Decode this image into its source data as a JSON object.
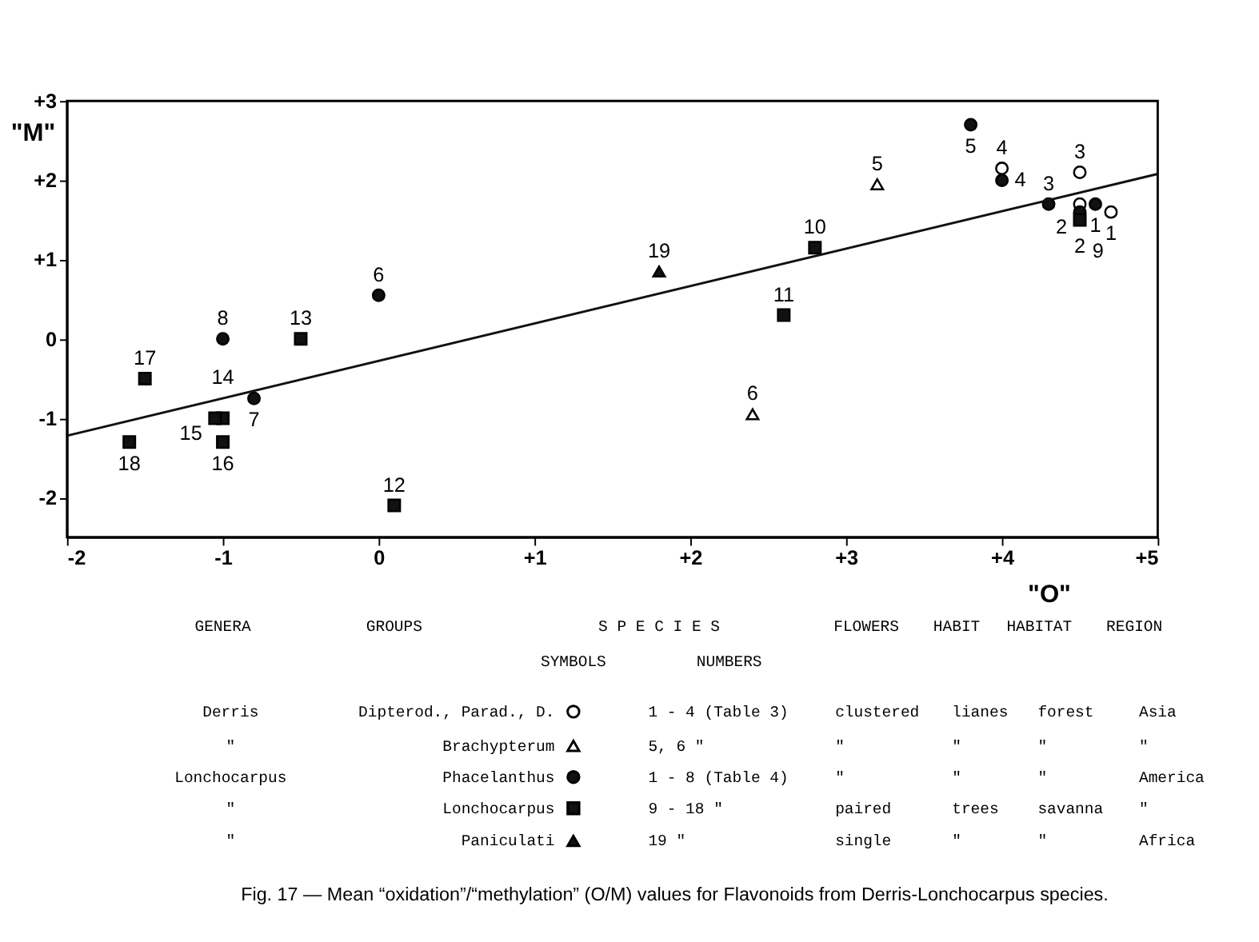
{
  "chart_data": {
    "type": "scatter",
    "xlabel": "\"O\"",
    "ylabel": "\"M\"",
    "xlim": [
      -2,
      5
    ],
    "ylim": [
      -2.5,
      3
    ],
    "xticks": [
      -2,
      -1,
      0,
      {
        "value": 1,
        "label": "+1"
      },
      {
        "value": 2,
        "label": "+2"
      },
      {
        "value": 3,
        "label": "+3"
      },
      {
        "value": 4,
        "label": "+4"
      },
      {
        "value": 5,
        "label": "+5"
      }
    ],
    "yticks": [
      -2,
      -1,
      0,
      {
        "value": 1,
        "label": "+1"
      },
      {
        "value": 2,
        "label": "+2"
      },
      {
        "value": 3,
        "label": "+3"
      }
    ],
    "grid": false,
    "legend": "bottom",
    "series": [
      {
        "name": "Dipterod., Parad., D.",
        "color": "#ffffff",
        "marker": "circle",
        "x": [
          4.7,
          4.5,
          4.5,
          4.0
        ],
        "values": [
          1.6,
          1.7,
          2.1,
          2.15
        ]
      },
      {
        "name": "Brachypterum",
        "color": "#ffffff",
        "marker": "triangle",
        "x": [
          3.2,
          2.4
        ],
        "values": [
          1.95,
          -0.95
        ]
      },
      {
        "name": "Phacelanthus",
        "color": "#111111",
        "marker": "circle",
        "x": [
          4.6,
          4.5,
          4.3,
          4.0,
          3.8,
          0.0,
          -0.8,
          -1.0
        ],
        "values": [
          1.7,
          1.6,
          1.7,
          2.0,
          2.7,
          0.55,
          -0.75,
          0.0
        ]
      },
      {
        "name": "Lonchocarpus",
        "color": "#111111",
        "marker": "square",
        "x": [
          4.5,
          2.8,
          2.6,
          0.1,
          -0.5,
          -1.0,
          -1.05,
          -1.0,
          -1.5,
          -1.6
        ],
        "values": [
          1.5,
          1.15,
          0.3,
          -2.1,
          0.0,
          -1.0,
          -1.0,
          -1.3,
          -0.5,
          -1.3
        ]
      },
      {
        "name": "Paniculati",
        "color": "#111111",
        "marker": "triangle",
        "x": [
          1.8
        ],
        "values": [
          0.85
        ]
      },
      {
        "type": "line",
        "color": "#111111",
        "line_style": "solid",
        "marker": "none",
        "x": [
          -2,
          5
        ],
        "values": [
          -1.22,
          2.08
        ]
      }
    ],
    "annotations": [
      "Fig. 17 — Mean “oxidation”/“methylation” (O/M) values for Flavonoids from Derris-Lonchocarpus species.",
      "GENERA",
      "GROUPS",
      "S P E C I E S",
      "FLOWERS",
      "HABIT",
      "HABITAT",
      "REGION",
      "SYMBOLS",
      "NUMBERS",
      "Derris",
      "1 - 4 (Table 3)",
      "clustered",
      "lianes",
      "forest",
      "Asia",
      "\"",
      "5, 6      \"",
      "\"",
      "\"",
      "\"",
      "\"",
      "Lonchocarpus",
      "1 - 8 (Table 4)",
      "\"",
      "\"",
      "\"",
      "America",
      "\"",
      "9 - 18     \"",
      "paired",
      "trees",
      "savanna",
      "\"",
      "\"",
      "19         \"",
      "single",
      "\"",
      "\"",
      "Africa",
      {
        "text": "5",
        "x": 3.8,
        "y": 2.7
      },
      {
        "text": "3",
        "x": 4.5,
        "y": 2.1
      },
      {
        "text": "4",
        "x": 4.0,
        "y": 2.15
      },
      {
        "text": "4",
        "x": 4.0,
        "y": 2.0
      },
      {
        "text": "1",
        "x": 4.7,
        "y": 1.6
      },
      {
        "text": "1",
        "x": 4.6,
        "y": 1.7
      },
      {
        "text": "3",
        "x": 4.3,
        "y": 1.7
      },
      {
        "text": "2",
        "x": 4.5,
        "y": 1.7
      },
      {
        "text": "2",
        "x": 4.5,
        "y": 1.6
      },
      {
        "text": "9",
        "x": 4.5,
        "y": 1.5
      },
      {
        "text": "5",
        "x": 3.2,
        "y": 1.95
      },
      {
        "text": "6",
        "x": 2.4,
        "y": -0.95
      },
      {
        "text": "10",
        "x": 2.8,
        "y": 1.15
      },
      {
        "text": "11",
        "x": 2.6,
        "y": 0.3
      },
      {
        "text": "19",
        "x": 1.8,
        "y": 0.85
      },
      {
        "text": "6",
        "x": 0.0,
        "y": 0.55
      },
      {
        "text": "12",
        "x": 0.1,
        "y": -2.1
      },
      {
        "text": "13",
        "x": -0.5,
        "y": 0.0
      },
      {
        "text": "8",
        "x": -1.0,
        "y": 0.0
      },
      {
        "text": "7",
        "x": -0.8,
        "y": -0.75
      },
      {
        "text": "17",
        "x": -1.5,
        "y": -0.5
      },
      {
        "text": "15",
        "x": -1.05,
        "y": -1.0
      },
      {
        "text": "14",
        "x": -1.0,
        "y": -1.0
      },
      {
        "text": "16",
        "x": -1.0,
        "y": -1.3
      },
      {
        "text": "18",
        "x": -1.6,
        "y": -1.3
      }
    ]
  }
}
